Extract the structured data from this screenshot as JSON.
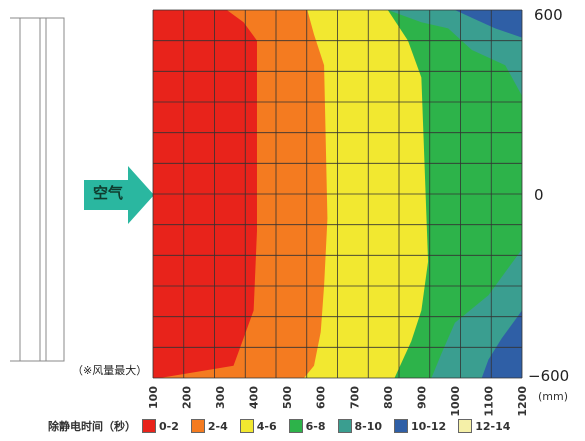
{
  "chart_data": {
    "type": "heatmap",
    "title": "",
    "xlabel": "",
    "x_unit": "(mm)",
    "x_ticks": [
      100,
      200,
      300,
      400,
      500,
      600,
      700,
      800,
      900,
      1000,
      1100,
      1200
    ],
    "y_ticks": [
      600,
      0,
      -600
    ],
    "xlim": [
      100,
      1200
    ],
    "ylim": [
      -600,
      600
    ],
    "grid": true,
    "legend_title": "除静电时间（秒）",
    "legend": [
      {
        "label": "0-2",
        "color": "#e8231b"
      },
      {
        "label": "2-4",
        "color": "#f47b20"
      },
      {
        "label": "4-6",
        "color": "#f2e830"
      },
      {
        "label": "6-8",
        "color": "#2db34a"
      },
      {
        "label": "8-10",
        "color": "#3a9e90"
      },
      {
        "label": "10-12",
        "color": "#2f5fa6"
      },
      {
        "label": "12-14",
        "color": "#f5f0a8"
      }
    ],
    "contours": {
      "0-2": [
        [
          100,
          600
        ],
        [
          320,
          600
        ],
        [
          370,
          560
        ],
        [
          410,
          500
        ],
        [
          410,
          -120
        ],
        [
          400,
          -380
        ],
        [
          340,
          -560
        ],
        [
          120,
          -600
        ],
        [
          100,
          -600
        ]
      ],
      "2-4": [
        [
          100,
          600
        ],
        [
          560,
          600
        ],
        [
          580,
          520
        ],
        [
          610,
          420
        ],
        [
          620,
          -80
        ],
        [
          610,
          -300
        ],
        [
          600,
          -450
        ],
        [
          580,
          -560
        ],
        [
          550,
          -600
        ],
        [
          100,
          -600
        ]
      ],
      "4-6": [
        [
          100,
          600
        ],
        [
          800,
          600
        ],
        [
          860,
          500
        ],
        [
          900,
          380
        ],
        [
          920,
          -220
        ],
        [
          900,
          -380
        ],
        [
          870,
          -480
        ],
        [
          820,
          -600
        ],
        [
          100,
          -600
        ]
      ],
      "6-8": [
        [
          100,
          600
        ],
        [
          1200,
          600
        ],
        [
          1200,
          -600
        ],
        [
          100,
          -600
        ]
      ],
      "8-10": [
        [
          700,
          600
        ],
        [
          1200,
          600
        ],
        [
          1200,
          320
        ],
        [
          1150,
          420
        ],
        [
          1050,
          470
        ],
        [
          980,
          540
        ],
        [
          900,
          560
        ],
        [
          800,
          600
        ]
      ]
    },
    "contours_lower_8_10": [
      [
        930,
        -600
      ],
      [
        1200,
        -600
      ],
      [
        1200,
        -180
      ],
      [
        1100,
        -330
      ],
      [
        1000,
        -420
      ],
      [
        960,
        -520
      ]
    ],
    "contours_10_12": [
      [
        [
          1000,
          600
        ],
        [
          1200,
          600
        ],
        [
          1200,
          510
        ],
        [
          1120,
          540
        ],
        [
          1060,
          570
        ]
      ],
      [
        [
          1080,
          -600
        ],
        [
          1200,
          -600
        ],
        [
          1200,
          -380
        ],
        [
          1140,
          -470
        ],
        [
          1100,
          -540
        ]
      ]
    ]
  },
  "labels": {
    "air": "空气",
    "note": "（※风量最大）",
    "y_top": "600",
    "y_mid": "0",
    "y_bottom": "−600"
  }
}
